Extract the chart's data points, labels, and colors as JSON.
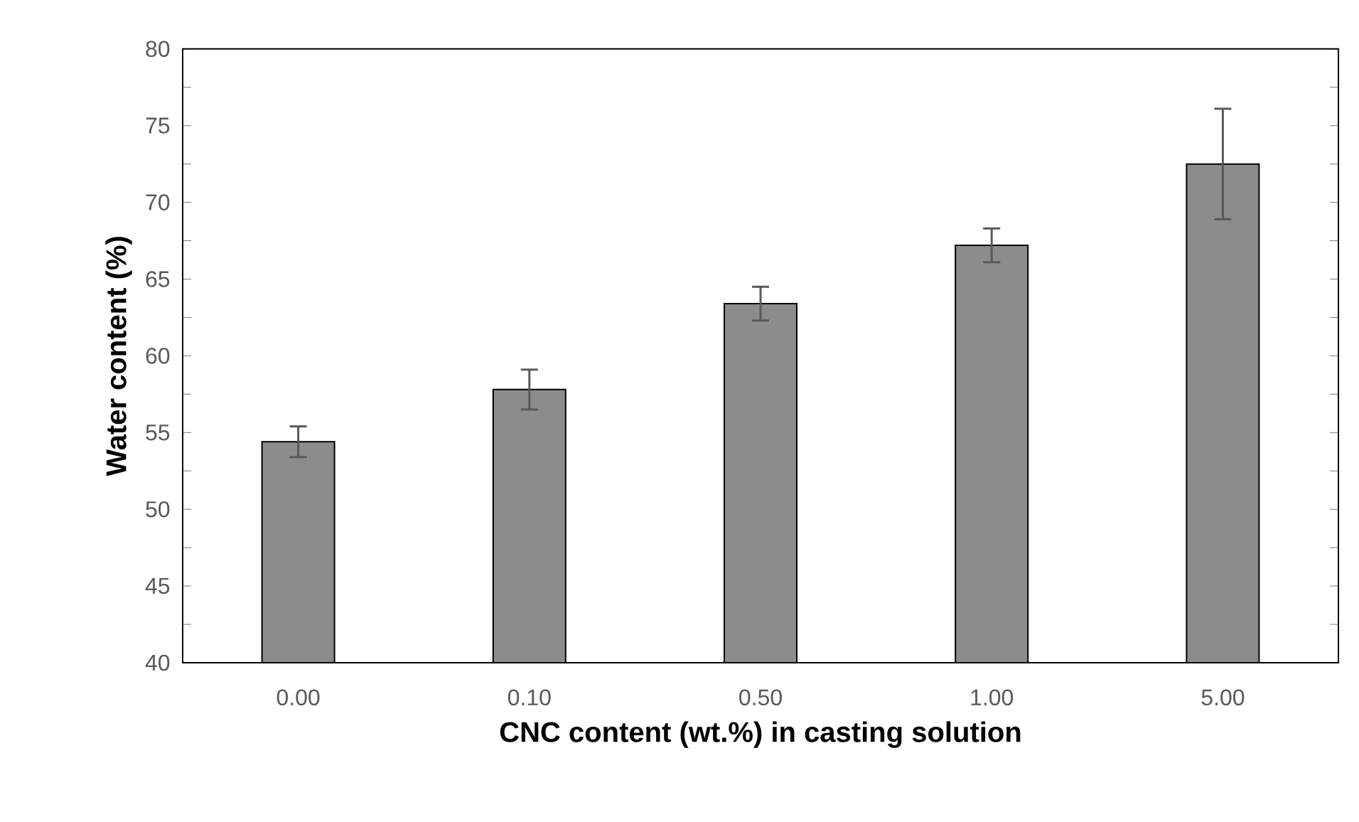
{
  "chart_data": {
    "type": "bar",
    "xlabel": "CNC content (wt.%)  in casting solution",
    "ylabel": "Water content (%)",
    "categories": [
      "0.00",
      "0.10",
      "0.50",
      "1.00",
      "5.00"
    ],
    "values": [
      54.4,
      57.8,
      63.4,
      67.2,
      72.5
    ],
    "errors": [
      1.0,
      1.3,
      1.1,
      1.1,
      3.6
    ],
    "color": "#8c8c8c",
    "ylim": [
      40,
      80
    ],
    "yticks": [
      40,
      45,
      50,
      55,
      60,
      65,
      70,
      75,
      80
    ],
    "grid": false
  }
}
